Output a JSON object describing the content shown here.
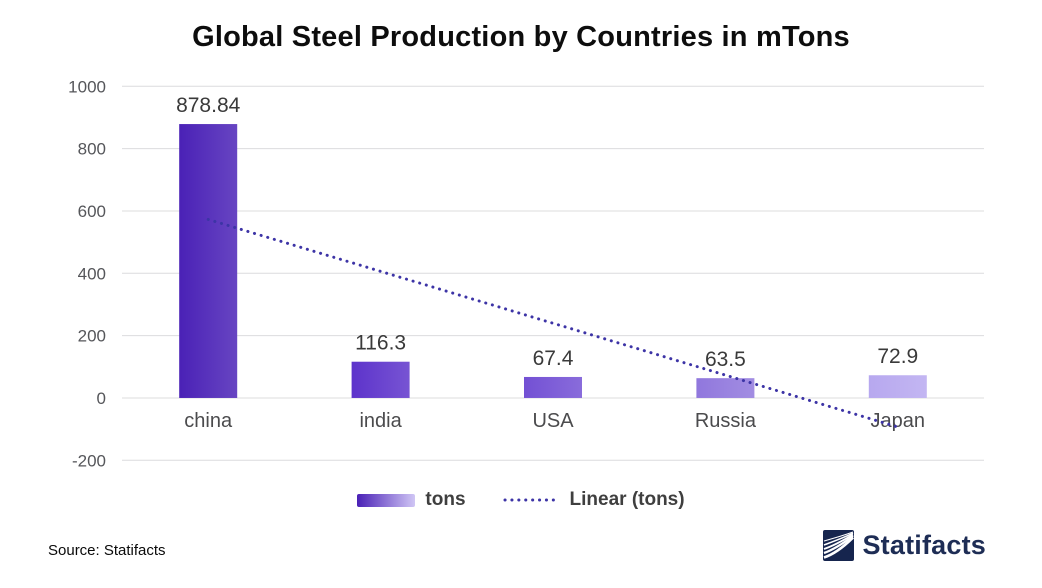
{
  "title": "Global Steel Production by Countries in mTons",
  "chart_data": {
    "type": "bar",
    "categories": [
      "china",
      "india",
      "USA",
      "Russia",
      "Japan"
    ],
    "values": [
      878.84,
      116.3,
      67.4,
      63.5,
      72.9
    ],
    "value_labels": [
      "878.84",
      "116.3",
      "67.4",
      "63.5",
      "72.9"
    ],
    "bar_colors": [
      "#4a21b6",
      "#5d33cb",
      "#7350d4",
      "#9077dd",
      "#b7a8ef"
    ],
    "series_name": "tons",
    "trendline": {
      "name": "Linear (tons)",
      "type": "linear",
      "color": "#3d34a6"
    },
    "yticks": [
      1000,
      800,
      600,
      400,
      200,
      0,
      -200
    ],
    "ylim": [
      -200,
      1000
    ],
    "grid": true,
    "legend_position": "bottom",
    "xlabel": "",
    "ylabel": ""
  },
  "legend": {
    "tons_label": "tons",
    "linear_label": "Linear (tons)"
  },
  "source": {
    "text": "Source: Statifacts"
  },
  "branding": {
    "logo_text": "Statifacts",
    "logo_color": "#16254e"
  },
  "colors": {
    "background": "#ffffff",
    "gridline": "#dcdcde",
    "tick_text": "#55565a",
    "category_text": "#4b4b4d",
    "value_text": "#3a3a3a"
  }
}
